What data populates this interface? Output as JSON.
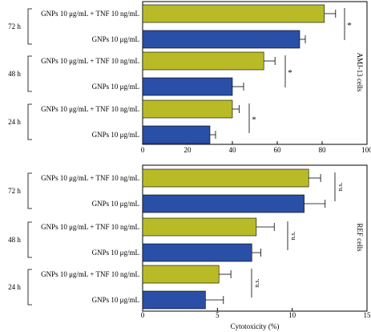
{
  "chart_data": [
    {
      "type": "bar",
      "orientation": "horizontal",
      "panel_label": "AMJ-13 cells",
      "xlabel": "",
      "xlim": [
        0,
        100
      ],
      "xticks": [
        "0",
        "20",
        "40",
        "60",
        "80",
        "100"
      ],
      "groups": [
        {
          "label": "72 h",
          "bars": [
            {
              "label": "GNPs 10 μg/mL + TNF 10 ng/mL",
              "value": 81,
              "error": 5,
              "color": "#b8bb26"
            },
            {
              "label": "GNPs 10 μg/mL",
              "value": 70,
              "error": 2.5,
              "color": "#2a4fa6"
            }
          ],
          "significance": "*"
        },
        {
          "label": "48 h",
          "bars": [
            {
              "label": "GNPs 10 μg/mL + TNF 10 ng/mL",
              "value": 54,
              "error": 5,
              "color": "#b8bb26"
            },
            {
              "label": "GNPs 10 μg/mL",
              "value": 40,
              "error": 5,
              "color": "#2a4fa6"
            }
          ],
          "significance": "*"
        },
        {
          "label": "24 h",
          "bars": [
            {
              "label": "GNPs 10 μg/mL + TNF 10 ng/mL",
              "value": 40,
              "error": 3,
              "color": "#b8bb26"
            },
            {
              "label": "GNPs 10 μg/mL",
              "value": 30,
              "error": 2.5,
              "color": "#2a4fa6"
            }
          ],
          "significance": "*"
        }
      ]
    },
    {
      "type": "bar",
      "orientation": "horizontal",
      "panel_label": "REF cells",
      "xlabel": "Cytotoxicity (%)",
      "xlim": [
        0,
        15
      ],
      "xticks": [
        "0",
        "5",
        "10",
        "15"
      ],
      "groups": [
        {
          "label": "72 h",
          "bars": [
            {
              "label": "GNPs 10 μg/mL + TNF 10 ng/mL",
              "value": 11.1,
              "error": 0.8,
              "color": "#b8bb26"
            },
            {
              "label": "GNPs 10 μg/mL",
              "value": 10.8,
              "error": 1.4,
              "color": "#2a4fa6"
            }
          ],
          "significance": "n.s."
        },
        {
          "label": "48 h",
          "bars": [
            {
              "label": "GNPs 10 μg/mL + TNF 10 ng/mL",
              "value": 7.6,
              "error": 1.2,
              "color": "#b8bb26"
            },
            {
              "label": "GNPs 10 μg/mL",
              "value": 7.3,
              "error": 0.6,
              "color": "#2a4fa6"
            }
          ],
          "significance": "n.s."
        },
        {
          "label": "24 h",
          "bars": [
            {
              "label": "GNPs 10 μg/mL + TNF 10 ng/mL",
              "value": 5.1,
              "error": 0.8,
              "color": "#b8bb26"
            },
            {
              "label": "GNPs 10 μg/mL",
              "value": 4.2,
              "error": 1.2,
              "color": "#2a4fa6"
            }
          ],
          "significance": "n.s."
        }
      ]
    }
  ]
}
